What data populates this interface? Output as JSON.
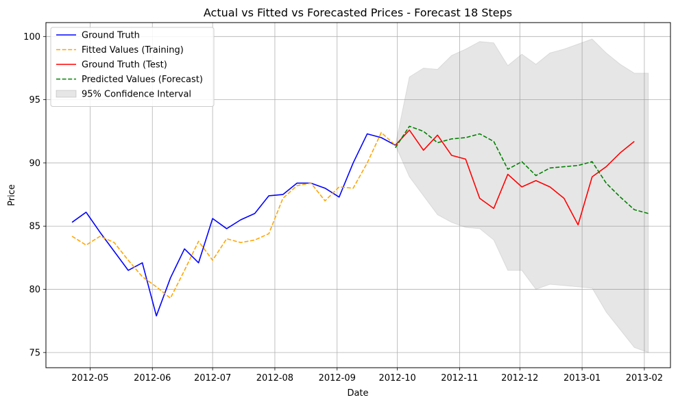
{
  "chart_data": {
    "type": "line",
    "title": "Actual vs Fitted vs Forecasted Prices - Forecast 18 Steps",
    "xlabel": "Date",
    "ylabel": "Price",
    "x_axis_type": "date",
    "xlim": [
      "2012-04-09",
      "2013-02-14"
    ],
    "ylim": [
      73.8,
      101.1
    ],
    "x_ticks": [
      {
        "date": "2012-05-01",
        "label": "2012-05"
      },
      {
        "date": "2012-06-01",
        "label": "2012-06"
      },
      {
        "date": "2012-07-01",
        "label": "2012-07"
      },
      {
        "date": "2012-08-01",
        "label": "2012-08"
      },
      {
        "date": "2012-09-01",
        "label": "2012-09"
      },
      {
        "date": "2012-10-01",
        "label": "2012-10"
      },
      {
        "date": "2012-11-01",
        "label": "2012-11"
      },
      {
        "date": "2012-12-01",
        "label": "2012-12"
      },
      {
        "date": "2013-01-01",
        "label": "2013-01"
      },
      {
        "date": "2013-02-01",
        "label": "2013-02"
      }
    ],
    "y_ticks": [
      75,
      80,
      85,
      90,
      95,
      100
    ],
    "grid": true,
    "legend_position": "top-left",
    "series": [
      {
        "name": "Ground Truth",
        "style": "solid",
        "color": "#0000ff",
        "points": [
          [
            "2012-04-22",
            85.3
          ],
          [
            "2012-04-29",
            86.1
          ],
          [
            "2012-05-06",
            84.5
          ],
          [
            "2012-05-13",
            83.0
          ],
          [
            "2012-05-20",
            81.5
          ],
          [
            "2012-05-27",
            82.1
          ],
          [
            "2012-06-03",
            77.9
          ],
          [
            "2012-06-10",
            80.9
          ],
          [
            "2012-06-17",
            83.2
          ],
          [
            "2012-06-24",
            82.1
          ],
          [
            "2012-07-01",
            85.6
          ],
          [
            "2012-07-08",
            84.8
          ],
          [
            "2012-07-15",
            85.5
          ],
          [
            "2012-07-22",
            86.0
          ],
          [
            "2012-07-29",
            87.4
          ],
          [
            "2012-08-05",
            87.5
          ],
          [
            "2012-08-12",
            88.4
          ],
          [
            "2012-08-19",
            88.4
          ],
          [
            "2012-08-26",
            88.0
          ],
          [
            "2012-09-02",
            87.3
          ],
          [
            "2012-09-09",
            90.0
          ],
          [
            "2012-09-16",
            92.3
          ],
          [
            "2012-09-23",
            92.0
          ],
          [
            "2012-09-30",
            91.4
          ]
        ]
      },
      {
        "name": "Fitted Values (Training)",
        "style": "dashed",
        "color": "#ffa500",
        "points": [
          [
            "2012-04-22",
            84.2
          ],
          [
            "2012-04-29",
            83.5
          ],
          [
            "2012-05-06",
            84.2
          ],
          [
            "2012-05-13",
            83.7
          ],
          [
            "2012-05-20",
            82.3
          ],
          [
            "2012-05-27",
            81.0
          ],
          [
            "2012-06-03",
            80.2
          ],
          [
            "2012-06-10",
            79.3
          ],
          [
            "2012-06-17",
            81.5
          ],
          [
            "2012-06-24",
            83.8
          ],
          [
            "2012-07-01",
            82.3
          ],
          [
            "2012-07-08",
            84.0
          ],
          [
            "2012-07-15",
            83.7
          ],
          [
            "2012-07-22",
            83.9
          ],
          [
            "2012-07-29",
            84.4
          ],
          [
            "2012-08-05",
            87.2
          ],
          [
            "2012-08-12",
            88.2
          ],
          [
            "2012-08-19",
            88.4
          ],
          [
            "2012-08-26",
            87.0
          ],
          [
            "2012-09-02",
            88.1
          ],
          [
            "2012-09-09",
            88.0
          ],
          [
            "2012-09-16",
            90.0
          ],
          [
            "2012-09-23",
            92.4
          ],
          [
            "2012-09-30",
            91.4
          ]
        ]
      },
      {
        "name": "Ground Truth (Test)",
        "style": "solid",
        "color": "#ff0000",
        "points": [
          [
            "2012-09-30",
            91.4
          ],
          [
            "2012-10-07",
            92.6
          ],
          [
            "2012-10-14",
            91.0
          ],
          [
            "2012-10-21",
            92.2
          ],
          [
            "2012-10-28",
            90.6
          ],
          [
            "2012-11-04",
            90.3
          ],
          [
            "2012-11-11",
            87.2
          ],
          [
            "2012-11-18",
            86.4
          ],
          [
            "2012-11-25",
            89.1
          ],
          [
            "2012-12-02",
            88.1
          ],
          [
            "2012-12-09",
            88.6
          ],
          [
            "2012-12-16",
            88.1
          ],
          [
            "2012-12-23",
            87.2
          ],
          [
            "2012-12-30",
            85.1
          ],
          [
            "2013-01-06",
            88.9
          ],
          [
            "2013-01-13",
            89.7
          ],
          [
            "2013-01-20",
            90.8
          ],
          [
            "2013-01-27",
            91.7
          ]
        ]
      },
      {
        "name": "Predicted Values (Forecast)",
        "style": "dashed",
        "color": "#008000",
        "points": [
          [
            "2012-09-30",
            91.2
          ],
          [
            "2012-10-07",
            92.9
          ],
          [
            "2012-10-14",
            92.5
          ],
          [
            "2012-10-21",
            91.6
          ],
          [
            "2012-10-28",
            91.9
          ],
          [
            "2012-11-04",
            92.0
          ],
          [
            "2012-11-11",
            92.3
          ],
          [
            "2012-11-18",
            91.7
          ],
          [
            "2012-11-25",
            89.5
          ],
          [
            "2012-12-02",
            90.1
          ],
          [
            "2012-12-09",
            89.0
          ],
          [
            "2012-12-16",
            89.6
          ],
          [
            "2012-12-23",
            89.7
          ],
          [
            "2012-12-30",
            89.8
          ],
          [
            "2013-01-06",
            90.1
          ],
          [
            "2013-01-13",
            88.4
          ],
          [
            "2013-01-20",
            87.3
          ],
          [
            "2013-01-27",
            86.3
          ],
          [
            "2013-02-03",
            86.0
          ]
        ]
      }
    ],
    "confidence_interval": {
      "name": "95% Confidence Interval",
      "color": "#808080",
      "upper": [
        [
          "2012-09-30",
          91.4
        ],
        [
          "2012-10-07",
          96.8
        ],
        [
          "2012-10-14",
          97.5
        ],
        [
          "2012-10-21",
          97.4
        ],
        [
          "2012-10-28",
          98.5
        ],
        [
          "2012-11-04",
          99.0
        ],
        [
          "2012-11-11",
          99.6
        ],
        [
          "2012-11-18",
          99.5
        ],
        [
          "2012-11-25",
          97.7
        ],
        [
          "2012-12-02",
          98.6
        ],
        [
          "2012-12-09",
          97.8
        ],
        [
          "2012-12-16",
          98.7
        ],
        [
          "2012-12-23",
          99.0
        ],
        [
          "2012-12-30",
          99.4
        ],
        [
          "2013-01-06",
          99.8
        ],
        [
          "2013-01-13",
          98.7
        ],
        [
          "2013-01-20",
          97.8
        ],
        [
          "2013-01-27",
          97.1
        ],
        [
          "2013-02-03",
          97.1
        ]
      ],
      "lower": [
        [
          "2012-09-30",
          91.4
        ],
        [
          "2012-10-07",
          88.9
        ],
        [
          "2012-10-14",
          87.4
        ],
        [
          "2012-10-21",
          85.9
        ],
        [
          "2012-10-28",
          85.3
        ],
        [
          "2012-11-04",
          84.9
        ],
        [
          "2012-11-11",
          84.8
        ],
        [
          "2012-11-18",
          83.9
        ],
        [
          "2012-11-25",
          81.5
        ],
        [
          "2012-12-02",
          81.5
        ],
        [
          "2012-12-09",
          80.0
        ],
        [
          "2012-12-16",
          80.4
        ],
        [
          "2012-12-23",
          80.3
        ],
        [
          "2012-12-30",
          80.2
        ],
        [
          "2013-01-06",
          80.1
        ],
        [
          "2013-01-13",
          78.2
        ],
        [
          "2013-01-20",
          76.8
        ],
        [
          "2013-01-27",
          75.4
        ],
        [
          "2013-02-03",
          75.0
        ]
      ]
    },
    "legend": [
      {
        "label": "Ground Truth",
        "kind": "line",
        "style": "solid",
        "color": "#0000ff"
      },
      {
        "label": "Fitted Values (Training)",
        "kind": "line",
        "style": "dashed",
        "color": "#ffa500"
      },
      {
        "label": "Ground Truth (Test)",
        "kind": "line",
        "style": "solid",
        "color": "#ff0000"
      },
      {
        "label": "Predicted Values (Forecast)",
        "kind": "line",
        "style": "dashed",
        "color": "#008000"
      },
      {
        "label": "95% Confidence Interval",
        "kind": "patch",
        "style": "fill",
        "color": "#808080"
      }
    ]
  }
}
